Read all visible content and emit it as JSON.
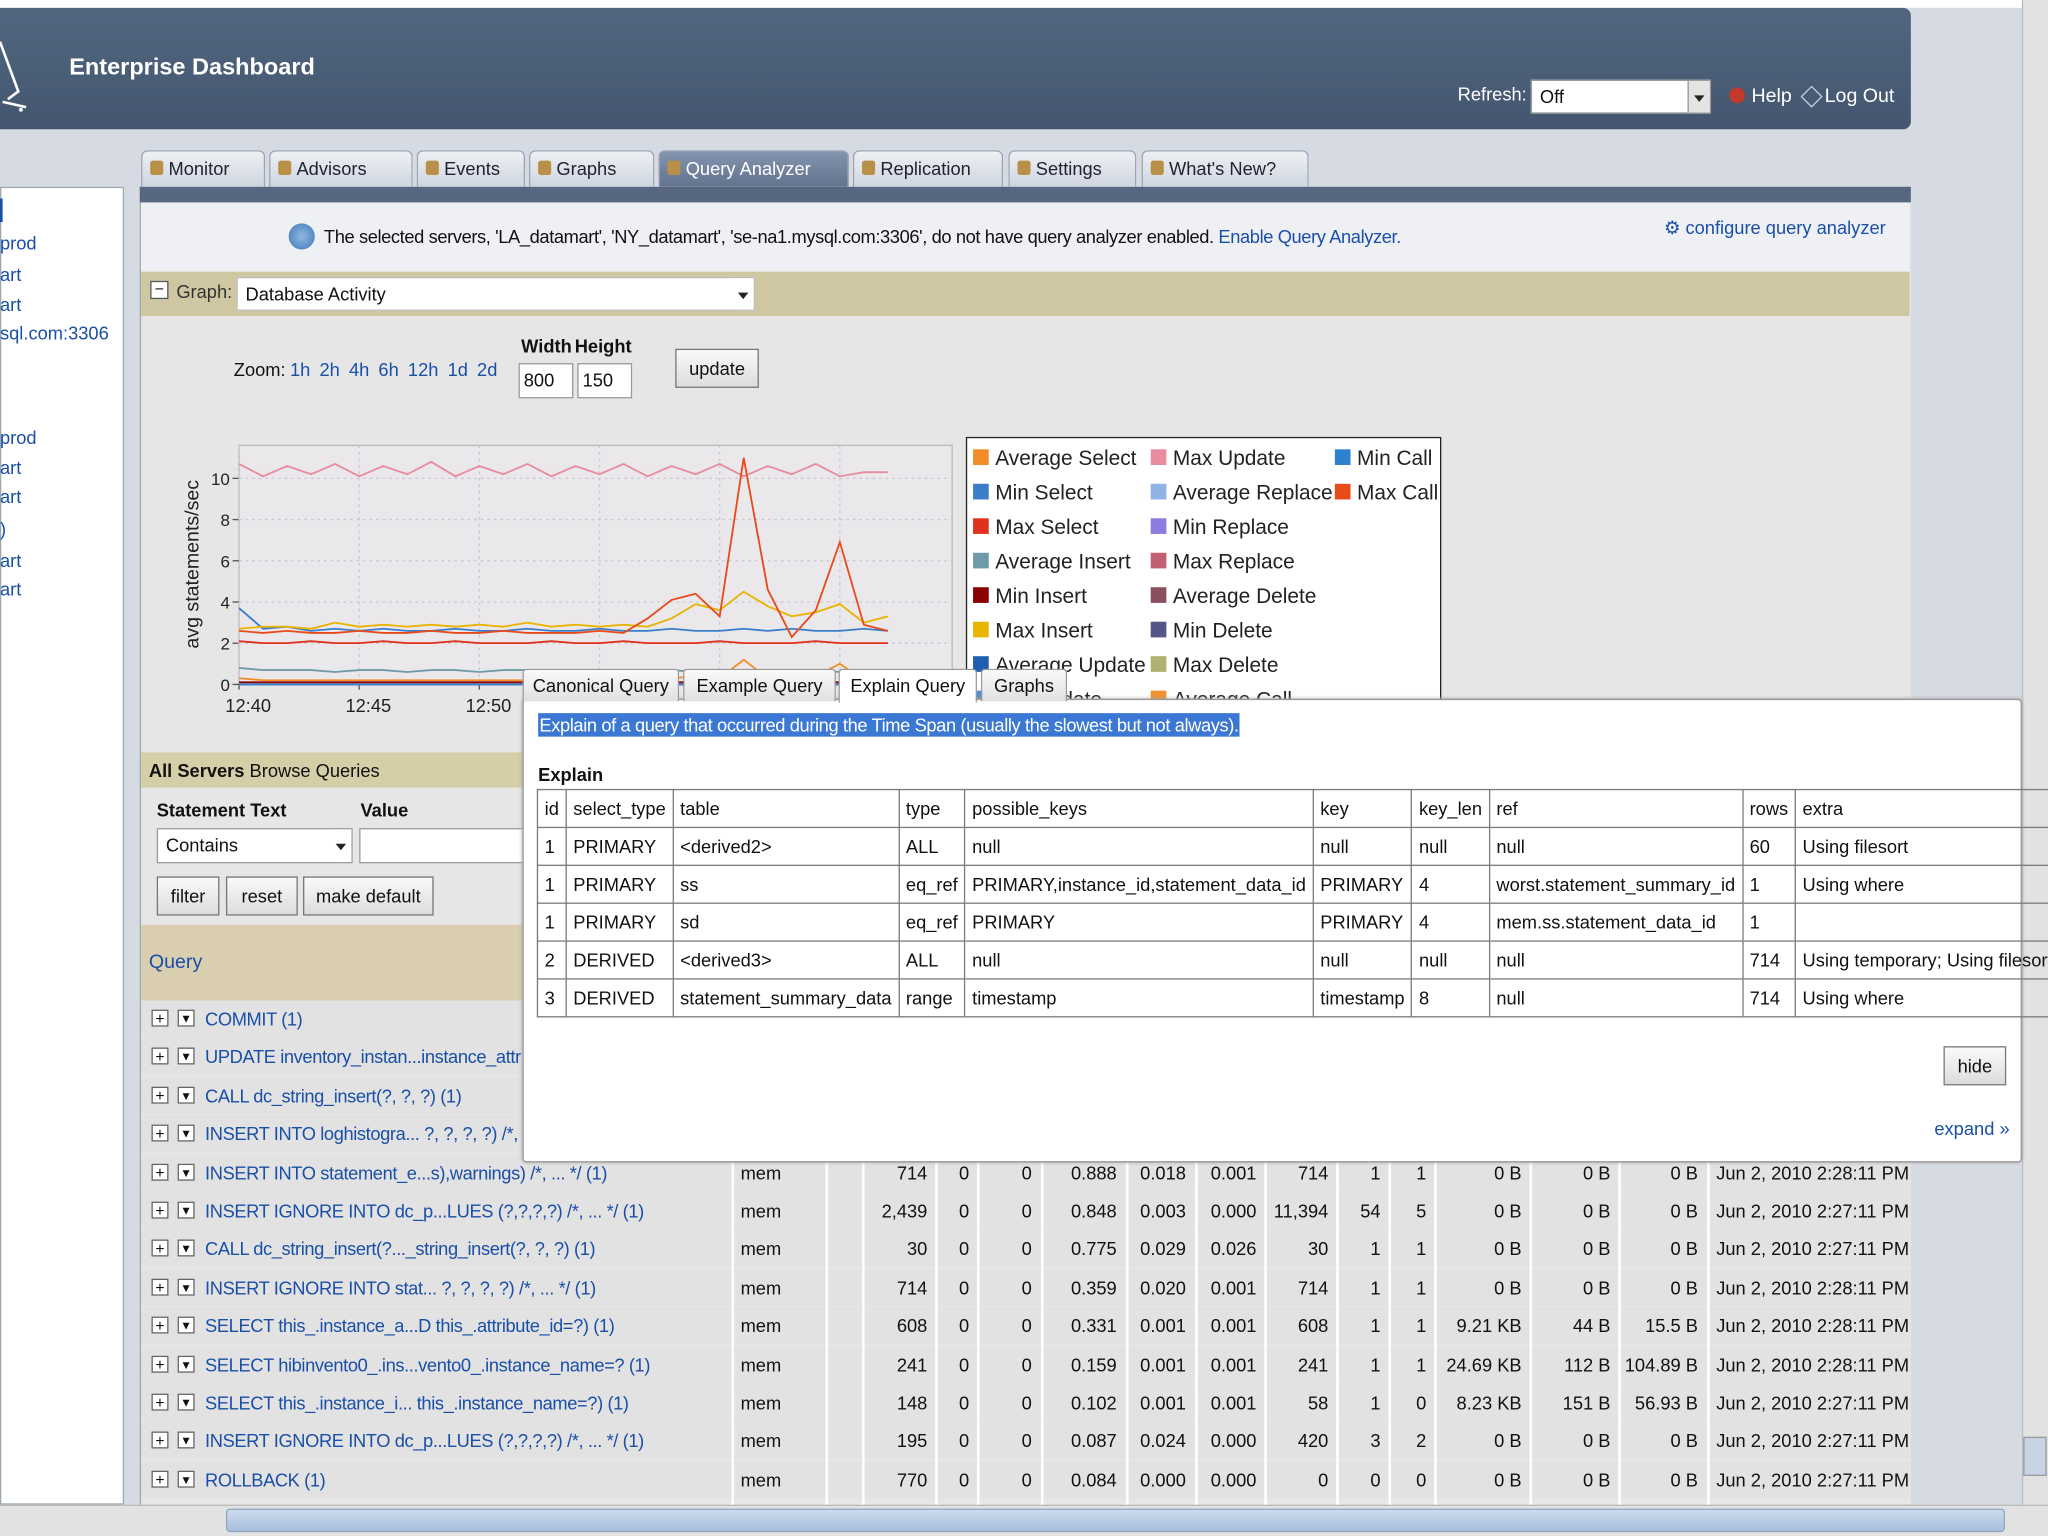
{
  "header": {
    "title": "Enterprise Dashboard",
    "refresh_label": "Refresh:",
    "refresh_value": "Off",
    "help": "Help",
    "logout": "Log Out"
  },
  "tabs": [
    "Monitor",
    "Advisors",
    "Events",
    "Graphs",
    "Query Analyzer",
    "Replication",
    "Settings",
    "What's New?"
  ],
  "sidebar": [
    "prod",
    "art",
    "art",
    "sql.com:3306",
    "prod",
    "art",
    "art",
    ")",
    "art",
    "art"
  ],
  "notice": {
    "text": "The selected servers, 'LA_datamart', 'NY_datamart', 'se-na1.mysql.com:3306', do not have query analyzer enabled.",
    "link": "Enable Query Analyzer.",
    "configure": "configure query analyzer"
  },
  "graph_bar": {
    "label": "Graph:",
    "selected": "Database Activity"
  },
  "zoom": {
    "label": "Zoom:",
    "options": [
      "1h",
      "2h",
      "4h",
      "6h",
      "12h",
      "1d",
      "2d"
    ],
    "width_label": "Width",
    "height_label": "Height",
    "width": "800",
    "height": "150",
    "update": "update"
  },
  "chart_data": {
    "type": "line",
    "ylabel": "avg statements/sec",
    "categories": [
      "12:40",
      null,
      null,
      null,
      null,
      "12:45",
      null,
      null,
      null,
      null,
      "12:50",
      null,
      null,
      null,
      null,
      null,
      null,
      null,
      null,
      null,
      null,
      null,
      null,
      null,
      null,
      null,
      null,
      null
    ],
    "ylim": [
      0,
      11.6
    ],
    "yticks": [
      0,
      2,
      4,
      6,
      8,
      10
    ],
    "grid": true,
    "series": [
      {
        "name": "Average Select",
        "color": "#f28c28",
        "values": [
          0.3,
          0.2,
          0.2,
          0.2,
          0.2,
          0.2,
          0.2,
          0.2,
          0.2,
          0.2,
          0.2,
          0.2,
          0.2,
          0.2,
          0.2,
          0.2,
          0.2,
          0.2,
          0.3,
          0.4,
          0.3,
          1.2,
          0.3,
          0.2,
          0.4,
          1.0,
          0.2,
          0.2
        ]
      },
      {
        "name": "Min Select",
        "color": "#3a7dc9",
        "values": [
          3.7,
          2.7,
          2.8,
          2.6,
          2.7,
          2.6,
          2.7,
          2.6,
          2.6,
          2.7,
          2.6,
          2.6,
          2.7,
          2.6,
          2.6,
          2.7,
          2.6,
          2.6,
          2.7,
          2.6,
          2.6,
          2.7,
          2.6,
          2.7,
          2.6,
          2.6,
          2.7,
          2.6
        ]
      },
      {
        "name": "Max Select",
        "color": "#e0301e",
        "values": [
          2.1,
          2.0,
          2.0,
          2.1,
          2.0,
          2.0,
          2.1,
          2.0,
          2.0,
          2.1,
          2.0,
          2.0,
          2.0,
          2.1,
          2.0,
          2.0,
          2.1,
          2.0,
          2.0,
          2.0,
          2.1,
          2.0,
          2.0,
          2.0,
          2.1,
          2.0,
          2.0,
          2.0
        ]
      },
      {
        "name": "Average Insert",
        "color": "#6f9aa8",
        "values": [
          0.8,
          0.7,
          0.7,
          0.7,
          0.6,
          0.7,
          0.7,
          0.6,
          0.7,
          0.7,
          0.6,
          0.7,
          0.7,
          0.6,
          0.7,
          0.7,
          0.6,
          0.7,
          0.7,
          0.6,
          0.7,
          0.7,
          0.6,
          0.7,
          0.7,
          0.6,
          0.7,
          0.7
        ]
      },
      {
        "name": "Min Insert",
        "color": "#8b0000",
        "values": [
          0.1,
          0.1,
          0.1,
          0.1,
          0.1,
          0.1,
          0.1,
          0.1,
          0.1,
          0.1,
          0.1,
          0.1,
          0.1,
          0.1,
          0.1,
          0.1,
          0.1,
          0.1,
          0.1,
          0.1,
          0.1,
          0.1,
          0.1,
          0.1,
          0.1,
          0.1,
          0.1,
          0.1
        ]
      },
      {
        "name": "Max Insert",
        "color": "#e8b400",
        "values": [
          2.7,
          2.8,
          2.8,
          2.7,
          3.0,
          2.8,
          2.9,
          2.8,
          2.9,
          2.8,
          2.9,
          2.8,
          3.0,
          2.8,
          2.9,
          2.8,
          2.9,
          2.8,
          3.2,
          3.9,
          3.6,
          4.5,
          3.8,
          3.3,
          3.5,
          3.9,
          3.0,
          3.3
        ]
      },
      {
        "name": "Average Update",
        "color": "#1f5fb0",
        "values": [
          0,
          0,
          0,
          0,
          0,
          0,
          0,
          0,
          0,
          0,
          0,
          0,
          0,
          0,
          0,
          0,
          0,
          0,
          0,
          0,
          0,
          0,
          0,
          0,
          0,
          0,
          0,
          0
        ]
      },
      {
        "name": "Min Update",
        "color": "#4a90d0",
        "values": [
          0,
          0,
          0,
          0,
          0,
          0,
          0,
          0,
          0,
          0,
          0,
          0,
          0,
          0,
          0,
          0,
          0,
          0,
          0,
          0,
          0,
          0,
          0,
          0,
          0,
          0,
          0,
          0
        ]
      },
      {
        "name": "Max Update",
        "color": "#e88ca0",
        "values": [
          10.7,
          10.1,
          10.6,
          10.2,
          10.7,
          10.1,
          10.6,
          10.2,
          10.8,
          10.1,
          10.6,
          10.2,
          10.7,
          10.1,
          10.6,
          10.2,
          10.7,
          10.1,
          10.6,
          10.2,
          10.7,
          10.1,
          10.6,
          10.2,
          10.7,
          10.1,
          10.3,
          10.3
        ]
      },
      {
        "name": "Average Replace",
        "color": "#8fb4e3",
        "values": [
          0,
          0,
          0,
          0,
          0,
          0,
          0,
          0,
          0,
          0,
          0,
          0,
          0,
          0,
          0,
          0,
          0,
          0,
          0,
          0,
          0,
          0,
          0,
          0,
          0,
          0,
          0,
          0
        ]
      },
      {
        "name": "Min Replace",
        "color": "#8a7ce0",
        "values": [
          0,
          0,
          0,
          0,
          0,
          0,
          0,
          0,
          0,
          0,
          0,
          0,
          0,
          0,
          0,
          0,
          0,
          0,
          0,
          0,
          0,
          0,
          0,
          0,
          0,
          0,
          0,
          0
        ]
      },
      {
        "name": "Max Replace",
        "color": "#c06070",
        "values": [
          0,
          0,
          0,
          0,
          0,
          0,
          0,
          0,
          0,
          0,
          0,
          0,
          0,
          0,
          0,
          0,
          0,
          0,
          0,
          0,
          0,
          0,
          0,
          0,
          0,
          0,
          0,
          0
        ]
      },
      {
        "name": "Average Delete",
        "color": "#8a5060",
        "values": [
          0,
          0,
          0,
          0,
          0,
          0,
          0,
          0,
          0,
          0,
          0,
          0,
          0,
          0,
          0,
          0,
          0,
          0,
          0,
          0,
          0,
          0,
          0,
          0,
          0,
          0,
          0,
          0
        ]
      },
      {
        "name": "Min Delete",
        "color": "#555588",
        "values": [
          0,
          0,
          0,
          0,
          0,
          0,
          0,
          0,
          0,
          0,
          0,
          0,
          0,
          0,
          0,
          0,
          0,
          0,
          0,
          0,
          0,
          0,
          0,
          0,
          0,
          0,
          0,
          0
        ]
      },
      {
        "name": "Max Delete",
        "color": "#b0b070",
        "values": [
          0,
          0,
          0,
          0,
          0,
          0,
          0,
          0,
          0,
          0,
          0,
          0,
          0,
          0,
          0,
          0,
          0,
          0,
          0,
          0,
          0,
          0,
          0,
          0,
          0,
          0,
          0,
          0
        ]
      },
      {
        "name": "Average Call",
        "color": "#f09030",
        "values": [
          0,
          0,
          0,
          0,
          0,
          0,
          0,
          0,
          0,
          0,
          0,
          0,
          0,
          0,
          0,
          0,
          0,
          0,
          0,
          0,
          0,
          0,
          0,
          0,
          0,
          0,
          0,
          0
        ]
      },
      {
        "name": "Min Call",
        "color": "#3080d0",
        "values": [
          0,
          0,
          0,
          0,
          0,
          0,
          0,
          0,
          0,
          0,
          0,
          0,
          0,
          0,
          0,
          0,
          0,
          0,
          0,
          0,
          0,
          0,
          0,
          0,
          0,
          0,
          0,
          0
        ]
      },
      {
        "name": "Max Call",
        "color": "#e84a1a",
        "values": [
          2.6,
          2.5,
          2.6,
          2.5,
          2.5,
          2.6,
          2.5,
          2.5,
          2.6,
          2.5,
          2.5,
          2.6,
          2.5,
          2.5,
          2.5,
          2.6,
          2.5,
          3.2,
          4.1,
          4.4,
          3.3,
          11.0,
          4.6,
          2.3,
          3.6,
          6.9,
          2.9,
          2.6
        ]
      }
    ]
  },
  "browse": {
    "scope": "All Servers",
    "link": "Browse Queries",
    "statement_label": "Statement Text",
    "value_label": "Value",
    "match": "Contains",
    "buttons": [
      "filter",
      "reset",
      "make default"
    ],
    "query_header": "Query"
  },
  "queries": [
    {
      "query": "COMMIT (1)"
    },
    {
      "query": "UPDATE inventory_instan...instance_attr"
    },
    {
      "query": "CALL dc_string_insert(?, ?, ?) (1)"
    },
    {
      "query": "INSERT INTO loghistogra... ?, ?, ?, ?) /*,"
    },
    {
      "query": "INSERT INTO statement_e...s),warnings) /*, ... */ (1)",
      "db": "mem",
      "cells": [
        "714",
        "0",
        "0",
        "0.888",
        "0.018",
        "0.001",
        "714",
        "1",
        "1",
        "0 B",
        "0 B",
        "0 B"
      ],
      "last_seen": "Jun 2, 2010 2:28:11 PM"
    },
    {
      "query": "INSERT IGNORE INTO dc_p...LUES (?,?,?,?) /*, ... */ (1)",
      "db": "mem",
      "cells": [
        "2,439",
        "0",
        "0",
        "0.848",
        "0.003",
        "0.000",
        "11,394",
        "54",
        "5",
        "0 B",
        "0 B",
        "0 B"
      ],
      "last_seen": "Jun 2, 2010 2:27:11 PM"
    },
    {
      "query": "CALL dc_string_insert(?..._string_insert(?, ?, ?) (1)",
      "db": "mem",
      "cells": [
        "30",
        "0",
        "0",
        "0.775",
        "0.029",
        "0.026",
        "30",
        "1",
        "1",
        "0 B",
        "0 B",
        "0 B"
      ],
      "last_seen": "Jun 2, 2010 2:27:11 PM"
    },
    {
      "query": "INSERT IGNORE INTO stat... ?, ?, ?, ?) /*, ... */ (1)",
      "db": "mem",
      "cells": [
        "714",
        "0",
        "0",
        "0.359",
        "0.020",
        "0.001",
        "714",
        "1",
        "1",
        "0 B",
        "0 B",
        "0 B"
      ],
      "last_seen": "Jun 2, 2010 2:28:11 PM"
    },
    {
      "query": "SELECT this_.instance_a...D this_.attribute_id=?) (1)",
      "db": "mem",
      "cells": [
        "608",
        "0",
        "0",
        "0.331",
        "0.001",
        "0.001",
        "608",
        "1",
        "1",
        "9.21 KB",
        "44 B",
        "15.5 B"
      ],
      "last_seen": "Jun 2, 2010 2:28:11 PM"
    },
    {
      "query": "SELECT hibinvento0_.ins...vento0_.instance_name=? (1)",
      "db": "mem",
      "cells": [
        "241",
        "0",
        "0",
        "0.159",
        "0.001",
        "0.001",
        "241",
        "1",
        "1",
        "24.69 KB",
        "112 B",
        "104.89 B"
      ],
      "last_seen": "Jun 2, 2010 2:28:11 PM"
    },
    {
      "query": "SELECT this_.instance_i... this_.instance_name=?) (1)",
      "db": "mem",
      "cells": [
        "148",
        "0",
        "0",
        "0.102",
        "0.001",
        "0.001",
        "58",
        "1",
        "0",
        "8.23 KB",
        "151 B",
        "56.93 B"
      ],
      "last_seen": "Jun 2, 2010 2:27:11 PM"
    },
    {
      "query": "INSERT IGNORE INTO dc_p...LUES (?,?,?,?) /*, ... */ (1)",
      "db": "mem",
      "cells": [
        "195",
        "0",
        "0",
        "0.087",
        "0.024",
        "0.000",
        "420",
        "3",
        "2",
        "0 B",
        "0 B",
        "0 B"
      ],
      "last_seen": "Jun 2, 2010 2:27:11 PM"
    },
    {
      "query": "ROLLBACK (1)",
      "db": "mem",
      "cells": [
        "770",
        "0",
        "0",
        "0.084",
        "0.000",
        "0.000",
        "0",
        "0",
        "0",
        "0 B",
        "0 B",
        "0 B"
      ],
      "last_seen": "Jun 2, 2010 2:27:11 PM"
    }
  ],
  "popup": {
    "tabs": [
      "Canonical Query",
      "Example Query",
      "Explain Query",
      "Graphs"
    ],
    "description": "Explain of a query that occurred during the Time Span (usually the slowest but not always).",
    "section": "Explain",
    "columns": [
      "id",
      "select_type",
      "table",
      "type",
      "possible_keys",
      "key",
      "key_len",
      "ref",
      "rows",
      "extra"
    ],
    "rows": [
      [
        "1",
        "PRIMARY",
        "<derived2>",
        "ALL",
        "null",
        "null",
        "null",
        "null",
        "60",
        "Using filesort"
      ],
      [
        "1",
        "PRIMARY",
        "ss",
        "eq_ref",
        "PRIMARY,instance_id,statement_data_id",
        "PRIMARY",
        "4",
        "worst.statement_summary_id",
        "1",
        "Using where"
      ],
      [
        "1",
        "PRIMARY",
        "sd",
        "eq_ref",
        "PRIMARY",
        "PRIMARY",
        "4",
        "mem.ss.statement_data_id",
        "1"
      ],
      [
        "2",
        "DERIVED",
        "<derived3>",
        "ALL",
        "null",
        "null",
        "null",
        "null",
        "714",
        "Using temporary; Using filesort"
      ],
      [
        "3",
        "DERIVED",
        "statement_summary_data",
        "range",
        "timestamp",
        "timestamp",
        "8",
        "null",
        "714",
        "Using where"
      ]
    ],
    "hide": "hide",
    "expand": "expand »"
  }
}
